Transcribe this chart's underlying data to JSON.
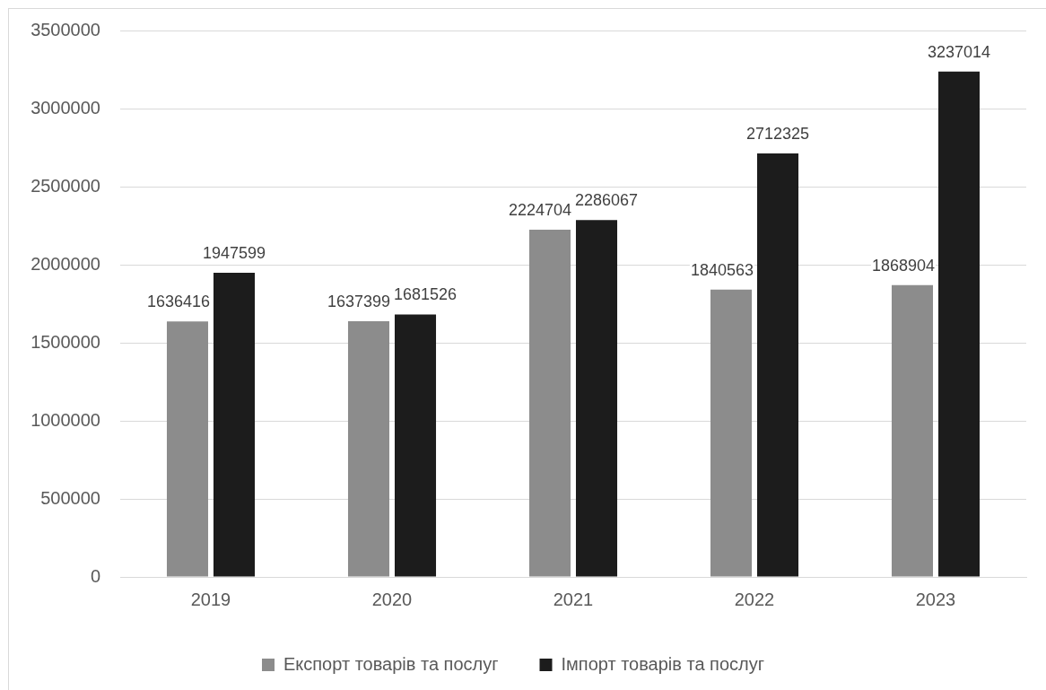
{
  "chart_data": {
    "type": "bar",
    "categories": [
      "2019",
      "2020",
      "2021",
      "2022",
      "2023"
    ],
    "series": [
      {
        "name": "Експорт товарів та послуг",
        "color": "#8c8c8c",
        "values": [
          1636416,
          1637399,
          2224704,
          1840563,
          1868904
        ]
      },
      {
        "name": "Імпорт товарів та послуг",
        "color": "#1c1c1c",
        "values": [
          1947599,
          1681526,
          2286067,
          2712325,
          3237014
        ]
      }
    ],
    "ylim": [
      0,
      3500000
    ],
    "yticks": [
      0,
      500000,
      1000000,
      1500000,
      2000000,
      2500000,
      3000000,
      3500000
    ],
    "grid": "y",
    "legend": "bottom",
    "data_labels": true
  }
}
